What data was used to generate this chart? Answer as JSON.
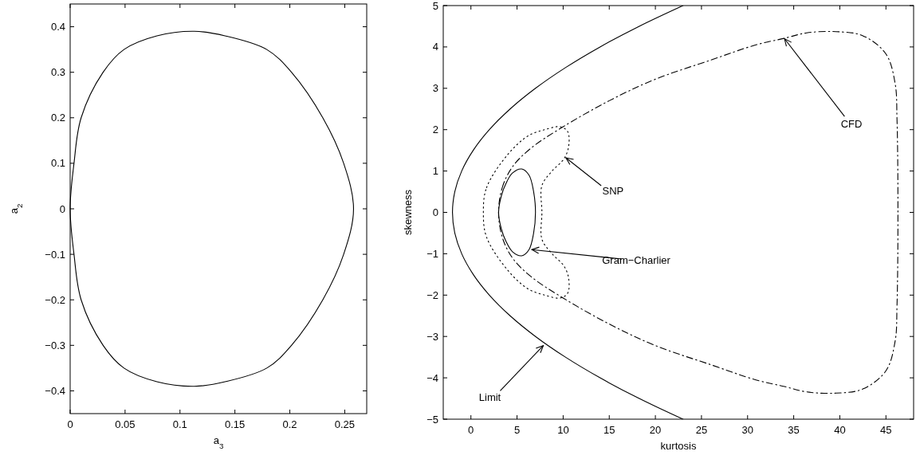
{
  "chart_data": [
    {
      "type": "line",
      "xlabel": "a$_{3}$",
      "ylabel": "a$_{2}$",
      "xlim": [
        0,
        0.27
      ],
      "ylim": [
        -0.45,
        0.45
      ],
      "xticks": [
        0,
        0.05,
        0.1,
        0.15,
        0.2,
        0.25
      ],
      "yticks": [
        -0.4,
        -0.3,
        -0.2,
        -0.1,
        0,
        0.1,
        0.2,
        0.3,
        0.4
      ]
    },
    {
      "type": "line",
      "xlabel": "kurtosis",
      "ylabel": "skewness",
      "xlim": [
        -3,
        48
      ],
      "ylim": [
        -5,
        5
      ],
      "xticks": [
        0,
        5,
        10,
        15,
        20,
        25,
        30,
        35,
        40,
        45
      ],
      "yticks": [
        -5,
        -4,
        -3,
        -2,
        -1,
        0,
        1,
        2,
        3,
        4,
        5
      ],
      "series": [
        {
          "color": "#000000",
          "line_style": "solid",
          "x": [
            23,
            18.25,
            14,
            10.25,
            7,
            4.25,
            2,
            0.25,
            -1,
            -1.75,
            -2,
            -1.75,
            -1,
            0.25,
            2,
            4.25,
            7,
            10.25,
            14,
            18.25,
            23
          ],
          "values": [
            5,
            4.5,
            4,
            3.5,
            3,
            2.5,
            2,
            1.5,
            1,
            0.5,
            0,
            -0.5,
            -1,
            -1.5,
            -2,
            -2.5,
            -3,
            -3.5,
            -4,
            -4.5,
            -5
          ]
        }
      ],
      "annotations": [
        "CFD",
        "SNP",
        "Gram−Charlier",
        {
          "text": "Limit",
          "x": 7.85,
          "y": -3.22
        }
      ]
    }
  ]
}
